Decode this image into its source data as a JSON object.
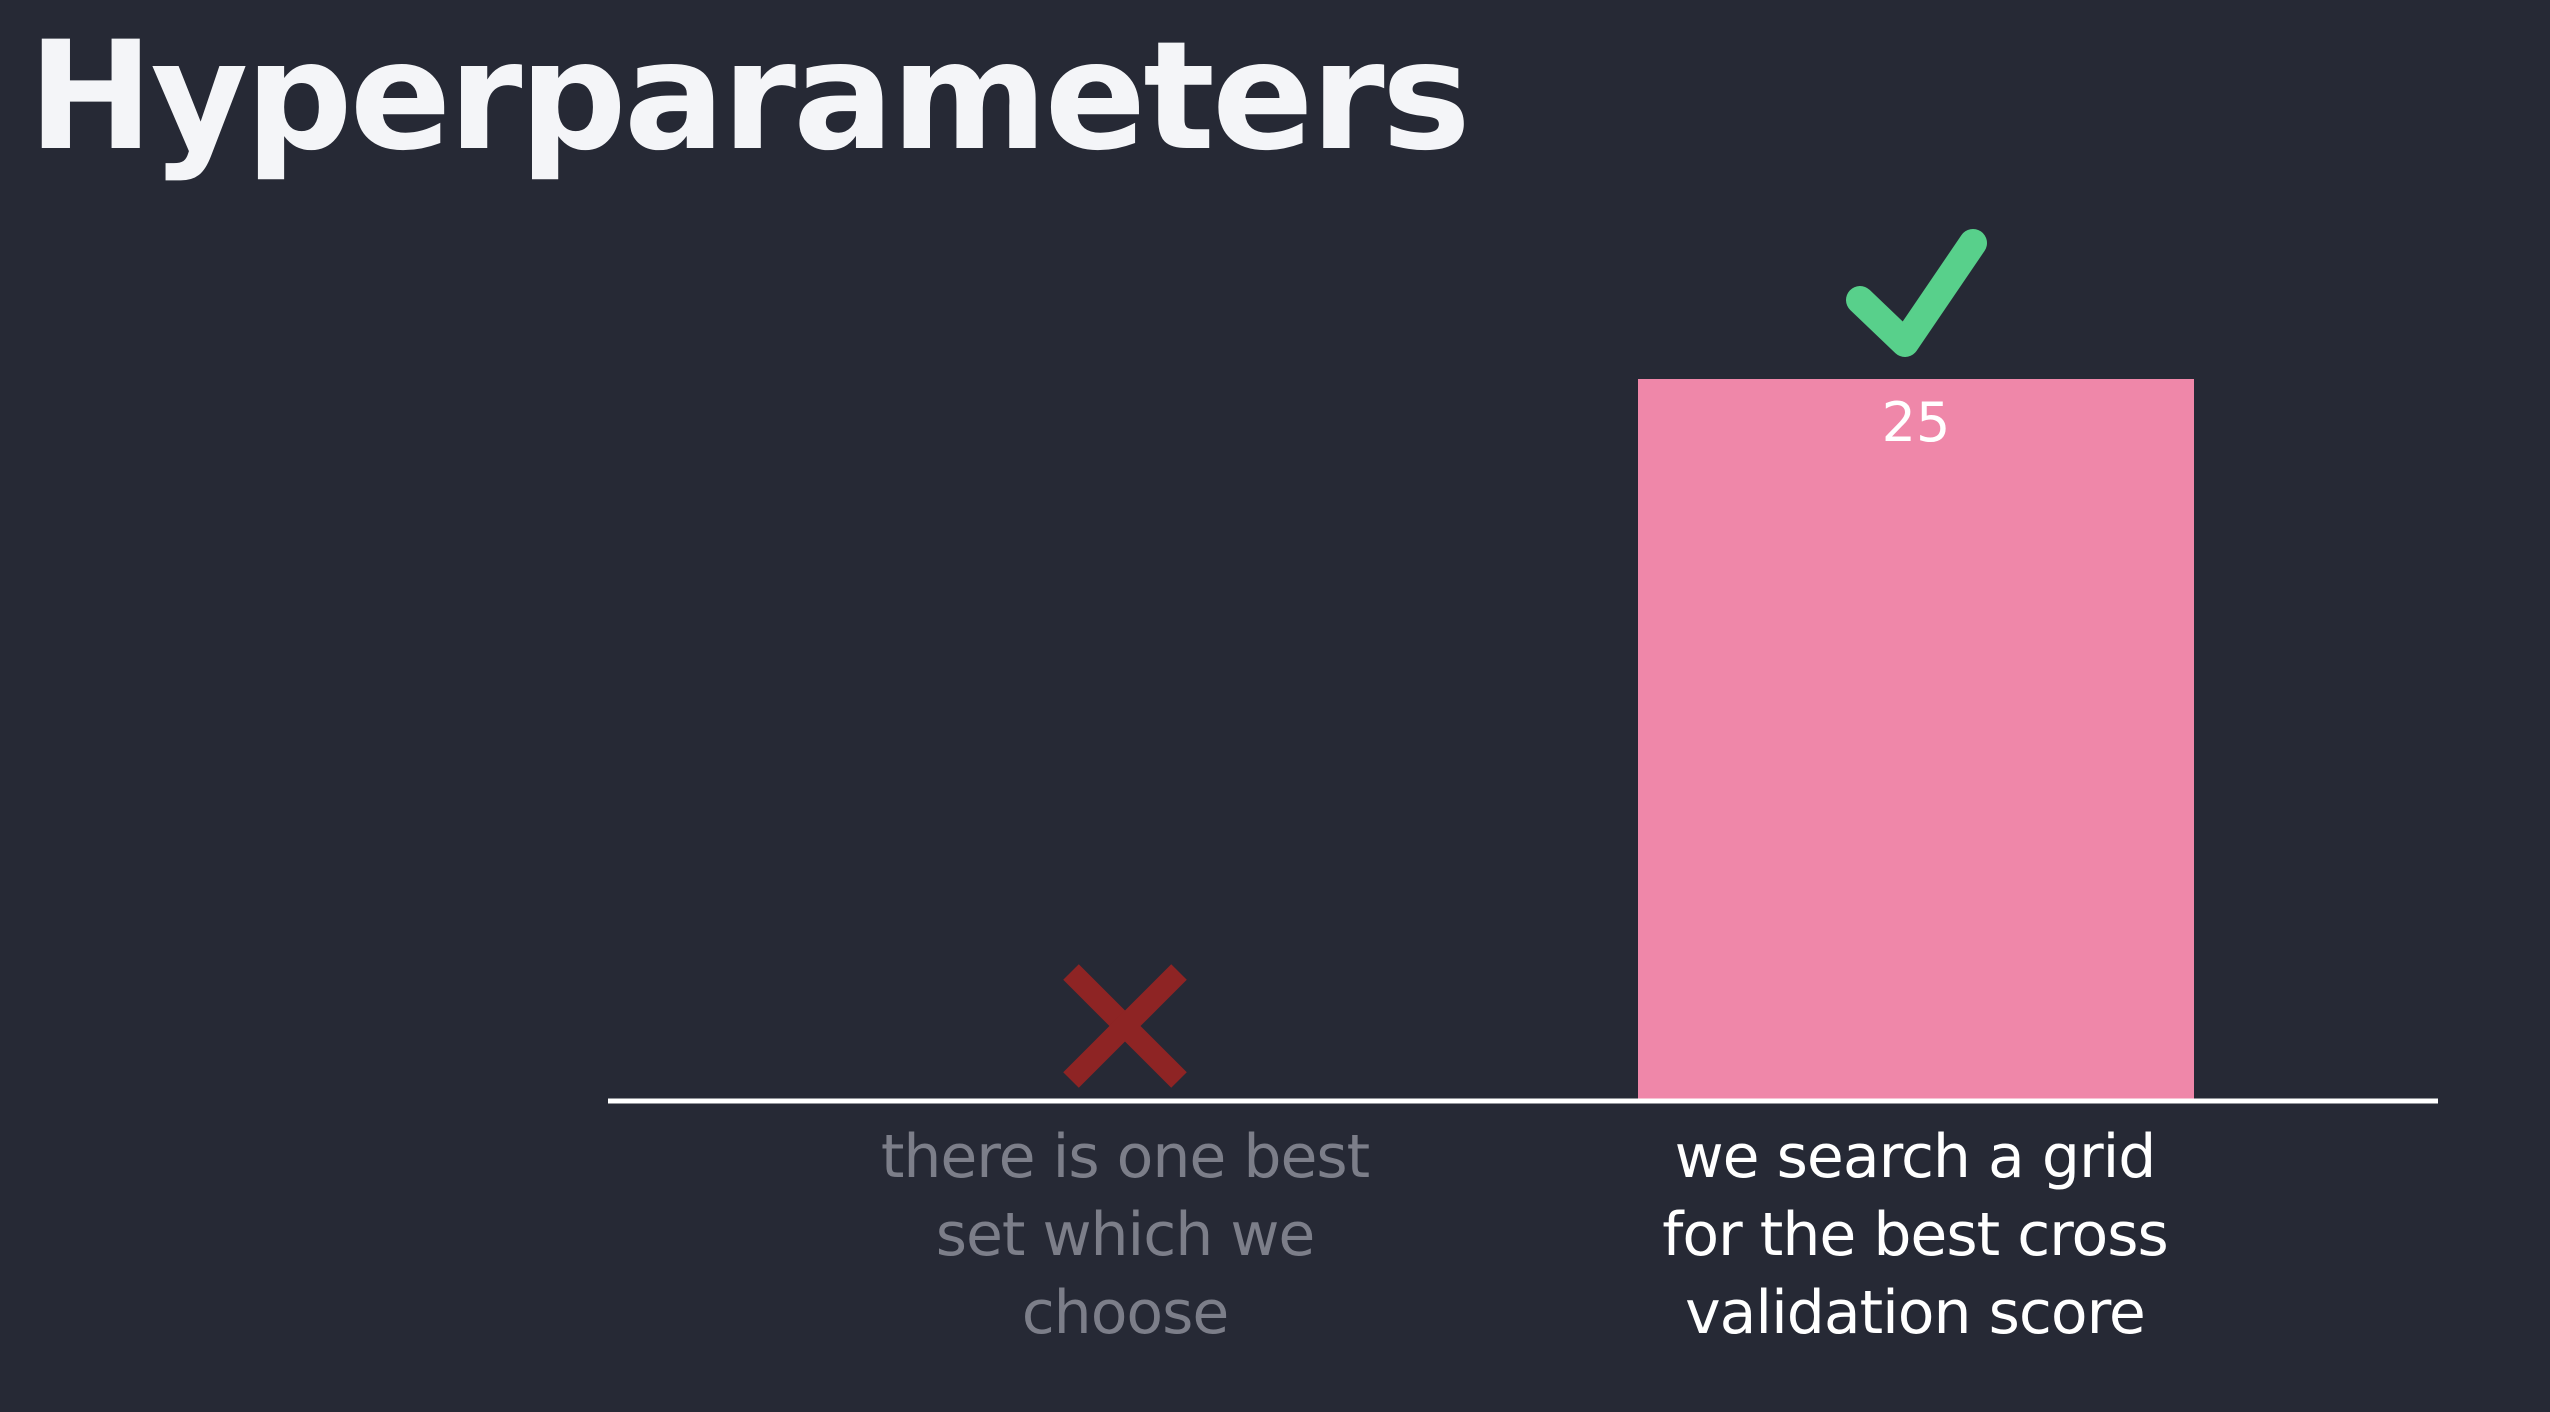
{
  "title": "Hyperparameters",
  "colors": {
    "background": "#262935",
    "bar": "#ef87a9",
    "axis": "#ffffff",
    "check": "#58d08b",
    "cross": "#8e2424",
    "label_dim": "#7c7e89",
    "label_bright": "#ffffff"
  },
  "chart_data": {
    "type": "bar",
    "categories": [
      "there is one best\nset which we\nchoose",
      "we search a grid\nfor the best cross\nvalidation score"
    ],
    "values": [
      0,
      25
    ],
    "data_labels": [
      "",
      "25"
    ],
    "markers": [
      "cross-icon",
      "check-icon"
    ],
    "ylim": [
      0,
      25
    ],
    "grid": false,
    "legend": "none",
    "xlabel": "",
    "ylabel": ""
  }
}
